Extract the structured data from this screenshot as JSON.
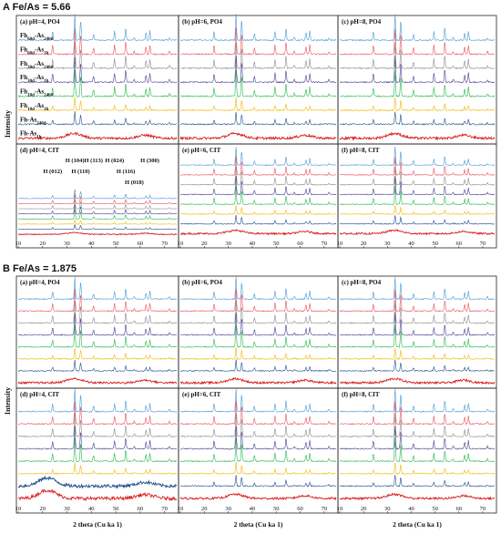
{
  "figure": {
    "sections": [
      {
        "title": "A Fe/As = 5.66"
      },
      {
        "title": "B Fe/As = 1.875"
      }
    ],
    "ylabel": "Intensity",
    "xlabel": "2 theta (Cu ka 1)",
    "colors": [
      "#4a98d4",
      "#e8515c",
      "#8c8c8c",
      "#4a3f95",
      "#26b84a",
      "#f2b705",
      "#1f4f8f",
      "#d91e1e"
    ]
  },
  "chart_data": [
    {
      "type": "line",
      "section": "A",
      "panel": "a",
      "title": "(a) pH=4, PO4",
      "xlabel": "2 theta (Cu ka 1)",
      "ylabel": "Intensity",
      "xlim": [
        10,
        75
      ],
      "series": [
        {
          "name": "Fh60d-As240d",
          "values_profile": "crystalline"
        },
        {
          "name": "Fh60d-As1h",
          "values_profile": "crystalline"
        },
        {
          "name": "Fh30d-As240d",
          "values_profile": "crystalline"
        },
        {
          "name": "Fh30d-As1h",
          "values_profile": "crystalline"
        },
        {
          "name": "Fh10d-As240d",
          "values_profile": "crystalline"
        },
        {
          "name": "Fh10d-As1h",
          "values_profile": "crystalline"
        },
        {
          "name": "Fh-As240d",
          "values_profile": "crystalline"
        },
        {
          "name": "Fh-As1h",
          "values_profile": "amorphous"
        }
      ]
    },
    {
      "type": "line",
      "section": "A",
      "panel": "b",
      "title": "(b) pH=6, PO4",
      "xlim": [
        10,
        75
      ]
    },
    {
      "type": "line",
      "section": "A",
      "panel": "c",
      "title": "(c) pH=8, PO4",
      "xlim": [
        10,
        75
      ]
    },
    {
      "type": "line",
      "section": "A",
      "panel": "d",
      "title": "(d) pH=4, CIT",
      "xlim": [
        10,
        75
      ],
      "x_ticks": [
        10,
        20,
        30,
        40,
        50,
        60,
        70
      ],
      "annotations": [
        {
          "label": "H (012)",
          "x": 24.1
        },
        {
          "label": "H (104)",
          "x": 33.2
        },
        {
          "label": "H (110)",
          "x": 35.6
        },
        {
          "label": "H (113)",
          "x": 40.9
        },
        {
          "label": "H (024)",
          "x": 49.5
        },
        {
          "label": "H (116)",
          "x": 54.1
        },
        {
          "label": "H (018)",
          "x": 57.6
        },
        {
          "label": "H (300)",
          "x": 64.0
        }
      ]
    },
    {
      "type": "line",
      "section": "A",
      "panel": "e",
      "title": "(e) pH=6, CIT",
      "xlim": [
        10,
        75
      ],
      "x_ticks": [
        10,
        20,
        30,
        40,
        50,
        60,
        70
      ]
    },
    {
      "type": "line",
      "section": "A",
      "panel": "f",
      "title": "(f) pH=8, CIT",
      "xlim": [
        10,
        75
      ],
      "x_ticks": [
        10,
        20,
        30,
        40,
        50,
        60,
        70
      ]
    },
    {
      "type": "line",
      "section": "B",
      "panel": "a",
      "title": "(a) pH=4, PO4",
      "xlim": [
        10,
        75
      ]
    },
    {
      "type": "line",
      "section": "B",
      "panel": "b",
      "title": "(b) pH=6, PO4",
      "xlim": [
        10,
        75
      ]
    },
    {
      "type": "line",
      "section": "B",
      "panel": "c",
      "title": "(c) pH=8, PO4",
      "xlim": [
        10,
        75
      ]
    },
    {
      "type": "line",
      "section": "B",
      "panel": "d",
      "title": "(d) pH=4, CIT",
      "xlim": [
        10,
        75
      ],
      "x_ticks": [
        10,
        20,
        30,
        40,
        50,
        60,
        70
      ]
    },
    {
      "type": "line",
      "section": "B",
      "panel": "e",
      "title": "(e) pH=6, CIT",
      "xlim": [
        10,
        75
      ],
      "x_ticks": [
        10,
        20,
        30,
        40,
        50,
        60,
        70
      ]
    },
    {
      "type": "line",
      "section": "B",
      "panel": "f",
      "title": "(f) pH=8, CIT",
      "xlim": [
        10,
        75
      ],
      "x_ticks": [
        10,
        20,
        30,
        40,
        50,
        60,
        70
      ]
    }
  ]
}
